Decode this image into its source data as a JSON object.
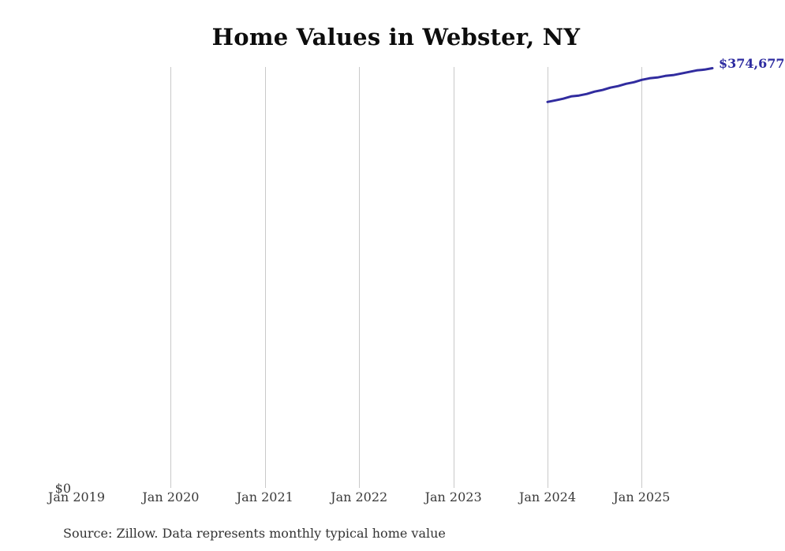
{
  "colors": {
    "line": "#312c9f",
    "end_label": "#2d2ba0",
    "gridline": "#c9c9c9",
    "axis_text": "#3a3a3a",
    "title_text": "#0d0d0d"
  },
  "chart_data": {
    "type": "line",
    "title": "Home Values in Webster, NY",
    "source_note": "Source: Zillow. Data represents monthly typical home value",
    "xlabel": "",
    "ylabel": "",
    "x_tick_labels": [
      "Jan 2019",
      "Jan 2020",
      "Jan 2021",
      "Jan 2022",
      "Jan 2023",
      "Jan 2024",
      "Jan 2025"
    ],
    "y_tick_labels": [
      "$0"
    ],
    "last_value_label": "$374,677",
    "ylim": [
      0,
      376000
    ],
    "grid": "vertical-only",
    "legend": "none",
    "series": [
      {
        "name": "Monthly typical home value",
        "x": [
          "Jan 2024",
          "Feb 2024",
          "Mar 2024",
          "Apr 2024",
          "May 2024",
          "Jun 2024",
          "Jul 2024",
          "Aug 2024",
          "Sep 2024",
          "Oct 2024",
          "Nov 2024",
          "Dec 2024",
          "Jan 2025",
          "Feb 2025",
          "Mar 2025",
          "Apr 2025",
          "May 2025",
          "Jun 2025",
          "Jul 2025",
          "Aug 2025",
          "Sep 2025",
          "Oct 2025"
        ],
        "values": [
          344600,
          346000,
          347500,
          349500,
          350300,
          351700,
          353800,
          355200,
          357300,
          358700,
          360800,
          362200,
          364300,
          365700,
          366400,
          367800,
          368500,
          369900,
          371300,
          372700,
          373400,
          374677
        ]
      }
    ]
  }
}
